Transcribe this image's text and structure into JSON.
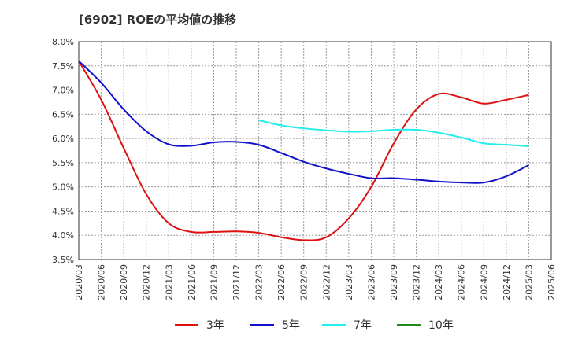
{
  "chart_data": {
    "type": "line",
    "title": "[6902]  ROEの平均値の推移",
    "xlabel": "",
    "ylabel": "",
    "ylim": [
      3.5,
      8.0
    ],
    "y_ticks": [
      "3.5%",
      "4.0%",
      "4.5%",
      "5.0%",
      "5.5%",
      "6.0%",
      "6.5%",
      "7.0%",
      "7.5%",
      "8.0%"
    ],
    "y_tick_values": [
      3.5,
      4.0,
      4.5,
      5.0,
      5.5,
      6.0,
      6.5,
      7.0,
      7.5,
      8.0
    ],
    "x": [
      "2020/03",
      "2020/06",
      "2020/09",
      "2020/12",
      "2021/03",
      "2021/06",
      "2021/09",
      "2021/12",
      "2022/03",
      "2022/06",
      "2022/09",
      "2022/12",
      "2023/03",
      "2023/06",
      "2023/09",
      "2023/12",
      "2024/03",
      "2024/06",
      "2024/09",
      "2024/12",
      "2025/03",
      "2025/06"
    ],
    "grid": true,
    "legend_position": "bottom",
    "series": [
      {
        "name": "3年",
        "color": "#dd1111",
        "values": [
          7.6,
          6.8,
          5.8,
          4.85,
          4.25,
          4.07,
          4.07,
          4.08,
          4.05,
          3.96,
          3.9,
          3.96,
          4.35,
          5.0,
          5.9,
          6.6,
          6.92,
          6.85,
          6.72,
          6.8,
          6.9,
          null
        ]
      },
      {
        "name": "5年",
        "color": "#1111cc",
        "values": [
          7.6,
          7.15,
          6.6,
          6.15,
          5.88,
          5.85,
          5.92,
          5.93,
          5.87,
          5.7,
          5.52,
          5.38,
          5.27,
          5.18,
          5.18,
          5.15,
          5.11,
          5.09,
          5.09,
          5.22,
          5.45,
          null
        ]
      },
      {
        "name": "7年",
        "color": "#22eeee",
        "values": [
          null,
          null,
          null,
          null,
          null,
          null,
          null,
          null,
          6.38,
          6.27,
          6.21,
          6.17,
          6.14,
          6.15,
          6.18,
          6.18,
          6.12,
          6.02,
          5.9,
          5.87,
          5.84,
          null
        ]
      },
      {
        "name": "10年",
        "color": "#228822",
        "values": [
          null,
          null,
          null,
          null,
          null,
          null,
          null,
          null,
          null,
          null,
          null,
          null,
          null,
          null,
          null,
          null,
          null,
          null,
          null,
          null,
          null,
          null
        ]
      }
    ]
  }
}
